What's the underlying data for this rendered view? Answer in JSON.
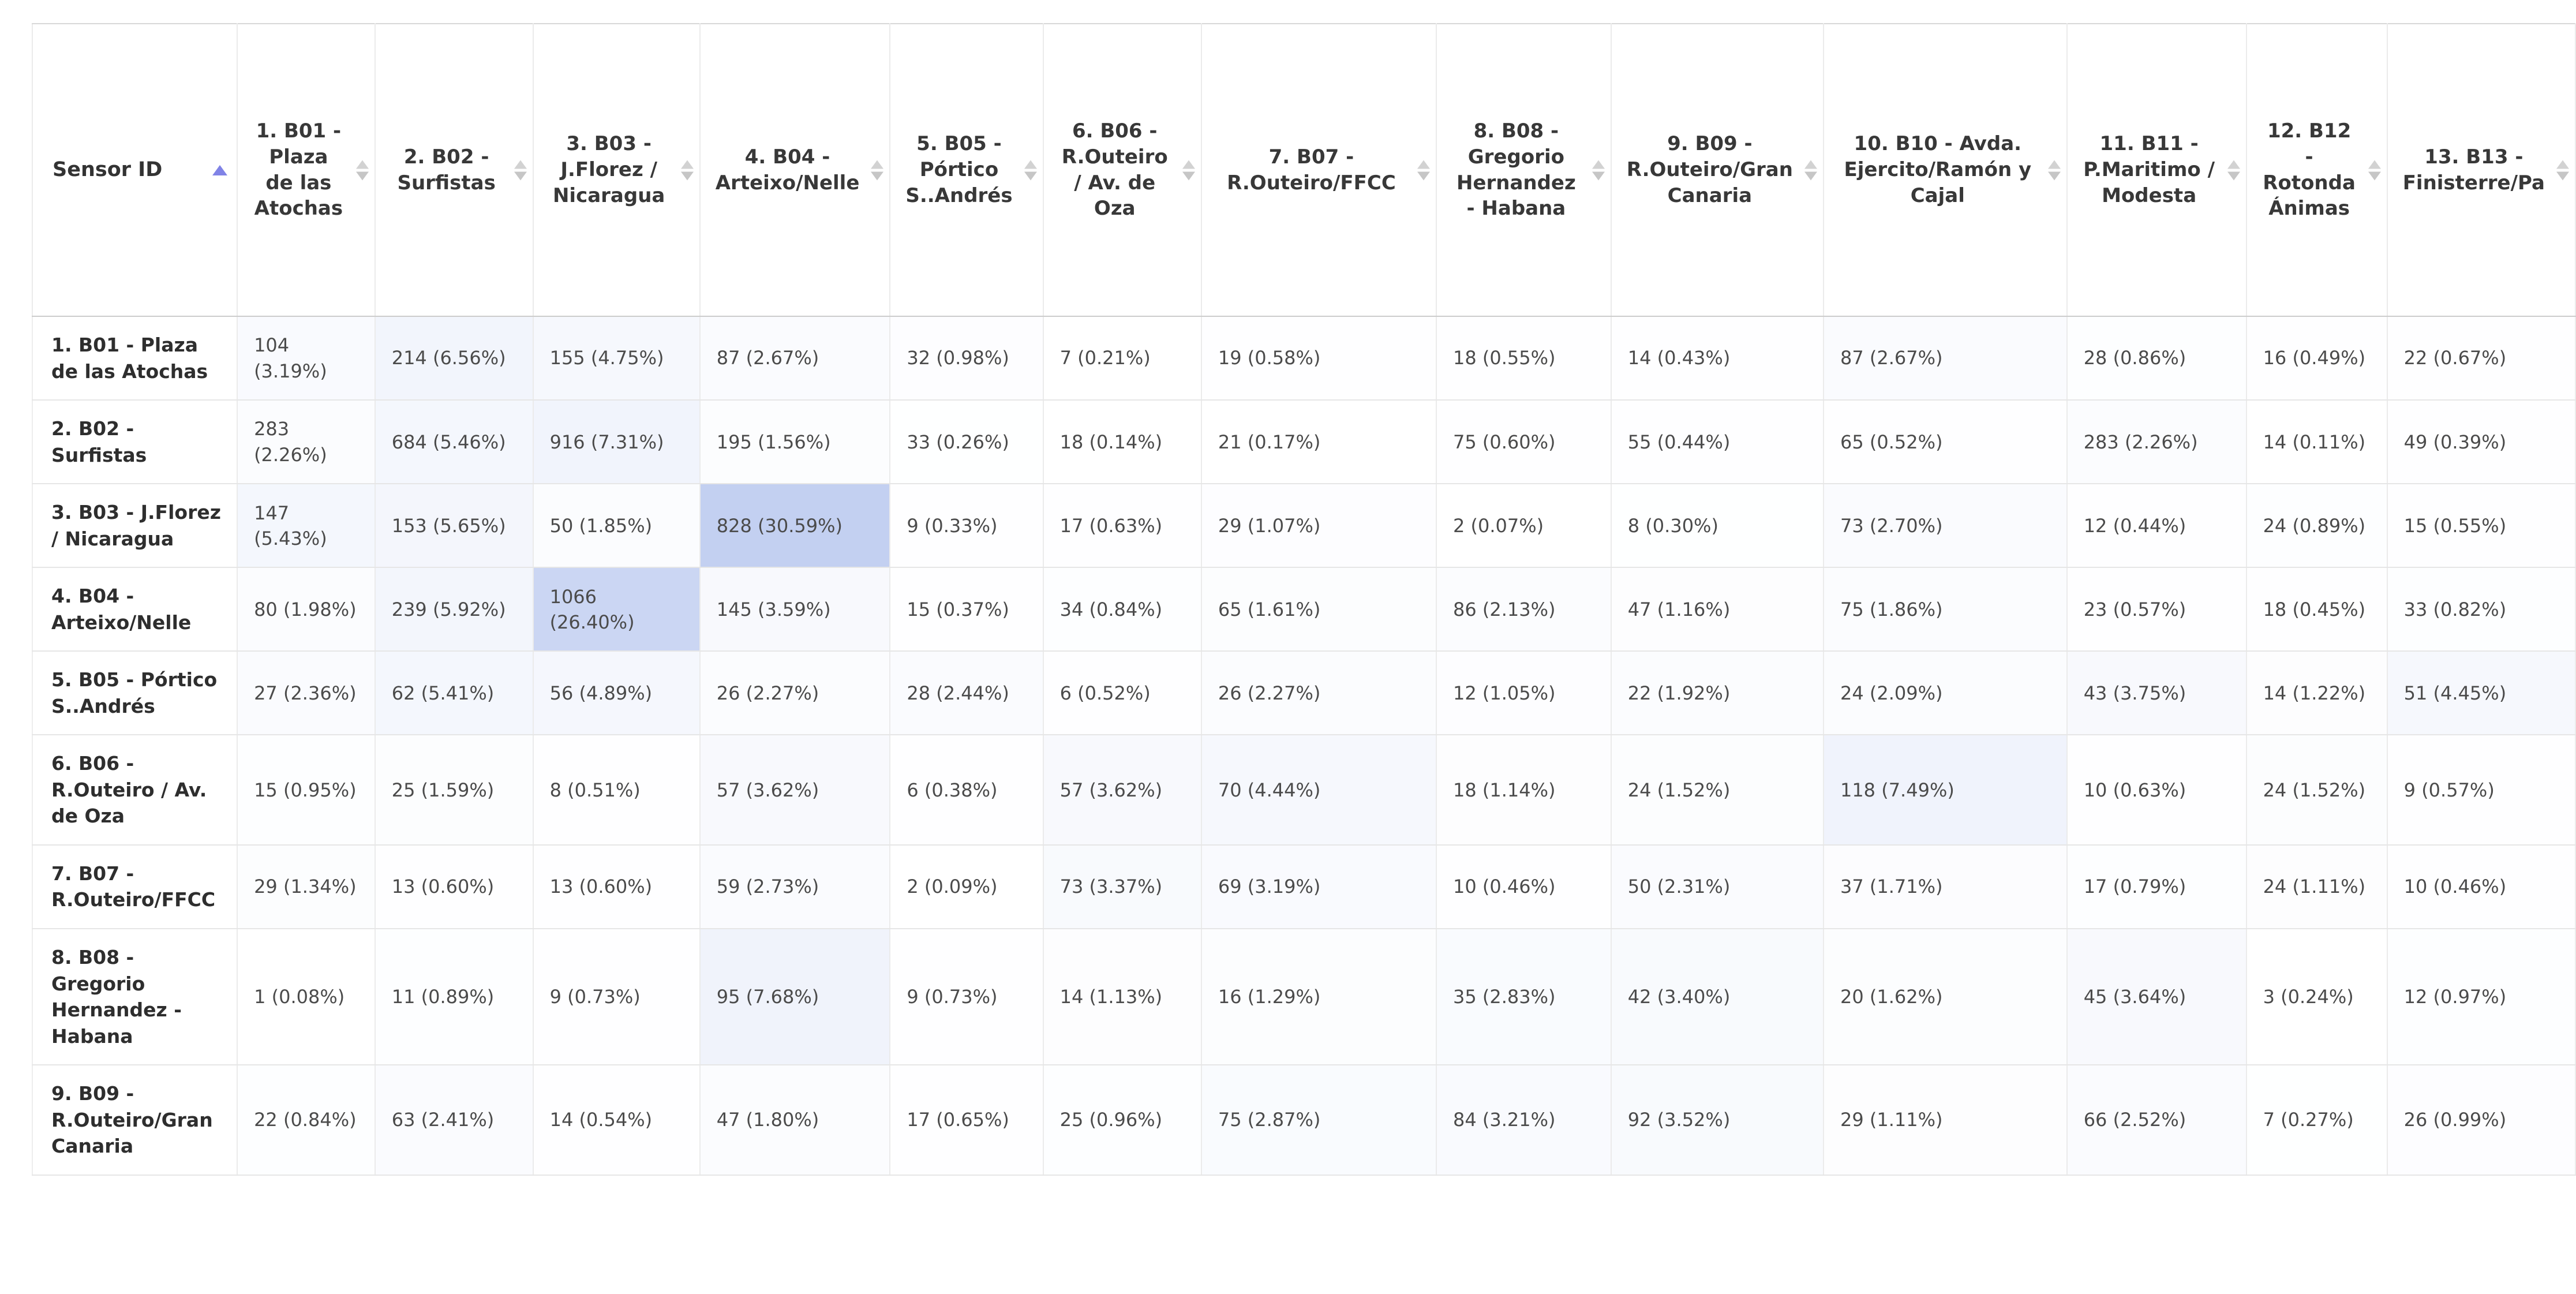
{
  "table": {
    "id_header": "Sensor ID",
    "sort": {
      "column": "Sensor ID",
      "direction": "ascending"
    },
    "heatmap": {
      "max_color": "#c3d0f1",
      "max_pct": 30.59
    },
    "columns": [
      {
        "label": "1. B01 - Plaza de las Atochas"
      },
      {
        "label": "2. B02 - Surfistas"
      },
      {
        "label": "3. B03 - J.Florez / Nicaragua"
      },
      {
        "label": "4. B04 - Arteixo/Nelle"
      },
      {
        "label": "5. B05 - Pórtico S..Andrés"
      },
      {
        "label": "6. B06 - R.Outeiro / Av. de Oza"
      },
      {
        "label": "7. B07 - R.Outeiro/FFCC"
      },
      {
        "label": "8. B08 - Gregorio Hernandez - Habana"
      },
      {
        "label": "9. B09 - R.Outeiro/Gran Canaria"
      },
      {
        "label": "10. B10 - Avda. Ejercito/Ramón y Cajal"
      },
      {
        "label": "11. B11 - P.Maritimo / Modesta"
      },
      {
        "label": "12. B12 - Rotonda Ánimas"
      },
      {
        "label": "13. B13 - Finisterre/Pa"
      }
    ],
    "rows": [
      {
        "label": "1. B01 - Plaza de las Atochas",
        "cells": [
          {
            "c": 104,
            "p": "3.19"
          },
          {
            "c": 214,
            "p": "6.56"
          },
          {
            "c": 155,
            "p": "4.75"
          },
          {
            "c": 87,
            "p": "2.67"
          },
          {
            "c": 32,
            "p": "0.98"
          },
          {
            "c": 7,
            "p": "0.21"
          },
          {
            "c": 19,
            "p": "0.58"
          },
          {
            "c": 18,
            "p": "0.55"
          },
          {
            "c": 14,
            "p": "0.43"
          },
          {
            "c": 87,
            "p": "2.67"
          },
          {
            "c": 28,
            "p": "0.86"
          },
          {
            "c": 16,
            "p": "0.49"
          },
          {
            "c": 22,
            "p": "0.67"
          }
        ]
      },
      {
        "label": "2. B02 - Surfistas",
        "cells": [
          {
            "c": 283,
            "p": "2.26"
          },
          {
            "c": 684,
            "p": "5.46"
          },
          {
            "c": 916,
            "p": "7.31"
          },
          {
            "c": 195,
            "p": "1.56"
          },
          {
            "c": 33,
            "p": "0.26"
          },
          {
            "c": 18,
            "p": "0.14"
          },
          {
            "c": 21,
            "p": "0.17"
          },
          {
            "c": 75,
            "p": "0.60"
          },
          {
            "c": 55,
            "p": "0.44"
          },
          {
            "c": 65,
            "p": "0.52"
          },
          {
            "c": 283,
            "p": "2.26"
          },
          {
            "c": 14,
            "p": "0.11"
          },
          {
            "c": 49,
            "p": "0.39"
          }
        ]
      },
      {
        "label": "3. B03 - J.Florez / Nicaragua",
        "cells": [
          {
            "c": 147,
            "p": "5.43"
          },
          {
            "c": 153,
            "p": "5.65"
          },
          {
            "c": 50,
            "p": "1.85"
          },
          {
            "c": 828,
            "p": "30.59"
          },
          {
            "c": 9,
            "p": "0.33"
          },
          {
            "c": 17,
            "p": "0.63"
          },
          {
            "c": 29,
            "p": "1.07"
          },
          {
            "c": 2,
            "p": "0.07"
          },
          {
            "c": 8,
            "p": "0.30"
          },
          {
            "c": 73,
            "p": "2.70"
          },
          {
            "c": 12,
            "p": "0.44"
          },
          {
            "c": 24,
            "p": "0.89"
          },
          {
            "c": 15,
            "p": "0.55"
          }
        ]
      },
      {
        "label": "4. B04 - Arteixo/Nelle",
        "cells": [
          {
            "c": 80,
            "p": "1.98"
          },
          {
            "c": 239,
            "p": "5.92"
          },
          {
            "c": 1066,
            "p": "26.40"
          },
          {
            "c": 145,
            "p": "3.59"
          },
          {
            "c": 15,
            "p": "0.37"
          },
          {
            "c": 34,
            "p": "0.84"
          },
          {
            "c": 65,
            "p": "1.61"
          },
          {
            "c": 86,
            "p": "2.13"
          },
          {
            "c": 47,
            "p": "1.16"
          },
          {
            "c": 75,
            "p": "1.86"
          },
          {
            "c": 23,
            "p": "0.57"
          },
          {
            "c": 18,
            "p": "0.45"
          },
          {
            "c": 33,
            "p": "0.82"
          }
        ]
      },
      {
        "label": "5. B05 - Pórtico S..Andrés",
        "cells": [
          {
            "c": 27,
            "p": "2.36"
          },
          {
            "c": 62,
            "p": "5.41"
          },
          {
            "c": 56,
            "p": "4.89"
          },
          {
            "c": 26,
            "p": "2.27"
          },
          {
            "c": 28,
            "p": "2.44"
          },
          {
            "c": 6,
            "p": "0.52"
          },
          {
            "c": 26,
            "p": "2.27"
          },
          {
            "c": 12,
            "p": "1.05"
          },
          {
            "c": 22,
            "p": "1.92"
          },
          {
            "c": 24,
            "p": "2.09"
          },
          {
            "c": 43,
            "p": "3.75"
          },
          {
            "c": 14,
            "p": "1.22"
          },
          {
            "c": 51,
            "p": "4.45"
          }
        ]
      },
      {
        "label": "6. B06 - R.Outeiro / Av. de Oza",
        "cells": [
          {
            "c": 15,
            "p": "0.95"
          },
          {
            "c": 25,
            "p": "1.59"
          },
          {
            "c": 8,
            "p": "0.51"
          },
          {
            "c": 57,
            "p": "3.62"
          },
          {
            "c": 6,
            "p": "0.38"
          },
          {
            "c": 57,
            "p": "3.62"
          },
          {
            "c": 70,
            "p": "4.44"
          },
          {
            "c": 18,
            "p": "1.14"
          },
          {
            "c": 24,
            "p": "1.52"
          },
          {
            "c": 118,
            "p": "7.49"
          },
          {
            "c": 10,
            "p": "0.63"
          },
          {
            "c": 24,
            "p": "1.52"
          },
          {
            "c": 9,
            "p": "0.57"
          }
        ]
      },
      {
        "label": "7. B07 - R.Outeiro/FFCC",
        "cells": [
          {
            "c": 29,
            "p": "1.34"
          },
          {
            "c": 13,
            "p": "0.60"
          },
          {
            "c": 13,
            "p": "0.60"
          },
          {
            "c": 59,
            "p": "2.73"
          },
          {
            "c": 2,
            "p": "0.09"
          },
          {
            "c": 73,
            "p": "3.37"
          },
          {
            "c": 69,
            "p": "3.19"
          },
          {
            "c": 10,
            "p": "0.46"
          },
          {
            "c": 50,
            "p": "2.31"
          },
          {
            "c": 37,
            "p": "1.71"
          },
          {
            "c": 17,
            "p": "0.79"
          },
          {
            "c": 24,
            "p": "1.11"
          },
          {
            "c": 10,
            "p": "0.46"
          }
        ]
      },
      {
        "label": "8. B08 - Gregorio Hernandez - Habana",
        "cells": [
          {
            "c": 1,
            "p": "0.08"
          },
          {
            "c": 11,
            "p": "0.89"
          },
          {
            "c": 9,
            "p": "0.73"
          },
          {
            "c": 95,
            "p": "7.68"
          },
          {
            "c": 9,
            "p": "0.73"
          },
          {
            "c": 14,
            "p": "1.13"
          },
          {
            "c": 16,
            "p": "1.29"
          },
          {
            "c": 35,
            "p": "2.83"
          },
          {
            "c": 42,
            "p": "3.40"
          },
          {
            "c": 20,
            "p": "1.62"
          },
          {
            "c": 45,
            "p": "3.64"
          },
          {
            "c": 3,
            "p": "0.24"
          },
          {
            "c": 12,
            "p": "0.97"
          }
        ]
      },
      {
        "label": "9. B09 - R.Outeiro/Gran Canaria",
        "cells": [
          {
            "c": 22,
            "p": "0.84"
          },
          {
            "c": 63,
            "p": "2.41"
          },
          {
            "c": 14,
            "p": "0.54"
          },
          {
            "c": 47,
            "p": "1.80"
          },
          {
            "c": 17,
            "p": "0.65"
          },
          {
            "c": 25,
            "p": "0.96"
          },
          {
            "c": 75,
            "p": "2.87"
          },
          {
            "c": 84,
            "p": "3.21"
          },
          {
            "c": 92,
            "p": "3.52"
          },
          {
            "c": 29,
            "p": "1.11"
          },
          {
            "c": 66,
            "p": "2.52"
          },
          {
            "c": 7,
            "p": "0.27"
          },
          {
            "c": 26,
            "p": "0.99"
          }
        ]
      }
    ]
  }
}
